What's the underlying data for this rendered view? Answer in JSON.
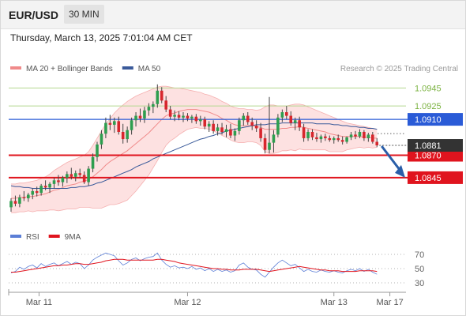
{
  "header": {
    "symbol": "EUR/USD",
    "timeframe": "30 MIN",
    "datetime": "Thursday, March 13, 2025 7:01:04 AM CET"
  },
  "legend": {
    "items": [
      {
        "label": "MA 20 + Bollinger Bands",
        "color": "#f08a8a"
      },
      {
        "label": "MA 50",
        "color": "#3a5a9a"
      }
    ],
    "credit": "Research © 2025 Trading Central"
  },
  "chart_data": [
    {
      "type": "candlestick",
      "title": "",
      "x_tick_labels": [
        "Mar 11",
        "Mar 12",
        "Mar 13",
        "Mar 17"
      ],
      "ylim": [
        1.08,
        1.0955
      ],
      "current_price": "1.0881",
      "levels": [
        {
          "label": "1.0945",
          "value": 1.0945,
          "kind": "target",
          "color": "#7cb342"
        },
        {
          "label": "1.0925",
          "value": 1.0925,
          "kind": "target",
          "color": "#7cb342"
        },
        {
          "label": "1.0910",
          "value": 1.091,
          "kind": "pivot",
          "color": "#2a5bd7"
        },
        {
          "label": "1.0870",
          "value": 1.087,
          "kind": "support",
          "color": "#e0141e"
        },
        {
          "label": "1.0845",
          "value": 1.0845,
          "kind": "support",
          "color": "#e0141e"
        }
      ],
      "candles": [
        [
          1.0812,
          1.0822,
          1.0807,
          1.0819
        ],
        [
          1.0819,
          1.0825,
          1.0813,
          1.0816
        ],
        [
          1.0816,
          1.0826,
          1.0812,
          1.0823
        ],
        [
          1.0823,
          1.083,
          1.0819,
          1.0822
        ],
        [
          1.0822,
          1.0828,
          1.0818,
          1.0826
        ],
        [
          1.0826,
          1.0833,
          1.0821,
          1.083
        ],
        [
          1.083,
          1.0835,
          1.0824,
          1.0828
        ],
        [
          1.0828,
          1.0838,
          1.0825,
          1.0836
        ],
        [
          1.0836,
          1.0842,
          1.0831,
          1.0834
        ],
        [
          1.0834,
          1.084,
          1.0828,
          1.0838
        ],
        [
          1.0838,
          1.0845,
          1.0833,
          1.0842
        ],
        [
          1.0842,
          1.0848,
          1.0836,
          1.084
        ],
        [
          1.084,
          1.0847,
          1.0835,
          1.0845
        ],
        [
          1.0845,
          1.0852,
          1.0839,
          1.0849
        ],
        [
          1.0849,
          1.0856,
          1.0843,
          1.0846
        ],
        [
          1.0846,
          1.0853,
          1.0841,
          1.085
        ],
        [
          1.085,
          1.0855,
          1.0845,
          1.0848
        ],
        [
          1.0848,
          1.0852,
          1.0838,
          1.084
        ],
        [
          1.084,
          1.0858,
          1.0836,
          1.0855
        ],
        [
          1.0855,
          1.0872,
          1.0851,
          1.0868
        ],
        [
          1.0868,
          1.0885,
          1.0863,
          1.0882
        ],
        [
          1.0882,
          1.0898,
          1.0877,
          1.0894
        ],
        [
          1.0894,
          1.0912,
          1.0889,
          1.0906
        ],
        [
          1.0906,
          1.0915,
          1.0898,
          1.0904
        ],
        [
          1.0904,
          1.0912,
          1.0895,
          1.0908
        ],
        [
          1.0908,
          1.0913,
          1.0893,
          1.0896
        ],
        [
          1.0896,
          1.0905,
          1.0883,
          1.0888
        ],
        [
          1.0888,
          1.0902,
          1.0884,
          1.0898
        ],
        [
          1.0898,
          1.0912,
          1.0893,
          1.0909
        ],
        [
          1.0909,
          1.0918,
          1.0902,
          1.0914
        ],
        [
          1.0914,
          1.0922,
          1.0907,
          1.0911
        ],
        [
          1.0911,
          1.0924,
          1.0906,
          1.092
        ],
        [
          1.092,
          1.0928,
          1.0914,
          1.0924
        ],
        [
          1.0924,
          1.093,
          1.0917,
          1.0927
        ],
        [
          1.0927,
          1.0949,
          1.0923,
          1.0942
        ],
        [
          1.0942,
          1.0946,
          1.0928,
          1.0931
        ],
        [
          1.0931,
          1.0936,
          1.0918,
          1.0921
        ],
        [
          1.0921,
          1.0925,
          1.091,
          1.0913
        ],
        [
          1.0913,
          1.092,
          1.0908,
          1.0915
        ],
        [
          1.0915,
          1.0919,
          1.0909,
          1.0912
        ],
        [
          1.0912,
          1.0918,
          1.0907,
          1.0914
        ],
        [
          1.0914,
          1.0917,
          1.0908,
          1.0911
        ],
        [
          1.0911,
          1.0915,
          1.0906,
          1.0913
        ],
        [
          1.0913,
          1.0916,
          1.0905,
          1.0908
        ],
        [
          1.0908,
          1.0914,
          1.0903,
          1.091
        ],
        [
          1.091,
          1.0913,
          1.0899,
          1.0902
        ],
        [
          1.0902,
          1.0908,
          1.0896,
          1.0905
        ],
        [
          1.0905,
          1.0909,
          1.0894,
          1.0897
        ],
        [
          1.0897,
          1.0905,
          1.0892,
          1.0901
        ],
        [
          1.0901,
          1.0906,
          1.0893,
          1.0896
        ],
        [
          1.0896,
          1.0904,
          1.089,
          1.0899
        ],
        [
          1.0899,
          1.0905,
          1.0889,
          1.0892
        ],
        [
          1.0892,
          1.09,
          1.0886,
          1.0897
        ],
        [
          1.0897,
          1.0912,
          1.0893,
          1.0909
        ],
        [
          1.0909,
          1.0917,
          1.0903,
          1.0914
        ],
        [
          1.0914,
          1.0918,
          1.0904,
          1.0907
        ],
        [
          1.0907,
          1.0912,
          1.0898,
          1.0903
        ],
        [
          1.0903,
          1.0909,
          1.0896,
          1.09
        ],
        [
          1.09,
          1.0906,
          1.0885,
          1.0889
        ],
        [
          1.0889,
          1.0894,
          1.0872,
          1.0876
        ],
        [
          1.0876,
          1.0935,
          1.0872,
          1.0884
        ],
        [
          1.0884,
          1.0898,
          1.0873,
          1.0893
        ],
        [
          1.0893,
          1.0916,
          1.089,
          1.0912
        ],
        [
          1.0912,
          1.0921,
          1.0907,
          1.0918
        ],
        [
          1.0918,
          1.0925,
          1.091,
          1.0914
        ],
        [
          1.0914,
          1.0919,
          1.0903,
          1.0906
        ],
        [
          1.0906,
          1.0912,
          1.0898,
          1.0909
        ],
        [
          1.0909,
          1.0913,
          1.0897,
          1.0901
        ],
        [
          1.0901,
          1.0905,
          1.0885,
          1.0889
        ],
        [
          1.0889,
          1.0899,
          1.0886,
          1.0896
        ],
        [
          1.0896,
          1.0899,
          1.0887,
          1.089
        ],
        [
          1.089,
          1.0895,
          1.0885,
          1.0888
        ],
        [
          1.0888,
          1.0893,
          1.0884,
          1.0891
        ],
        [
          1.0891,
          1.0894,
          1.0886,
          1.0889
        ],
        [
          1.0889,
          1.0892,
          1.0885,
          1.0887
        ],
        [
          1.0887,
          1.0891,
          1.0883,
          1.0889
        ],
        [
          1.0889,
          1.0893,
          1.0885,
          1.0887
        ],
        [
          1.0887,
          1.0891,
          1.0882,
          1.0885
        ],
        [
          1.0885,
          1.0891,
          1.0883,
          1.089
        ],
        [
          1.089,
          1.0896,
          1.0887,
          1.0893
        ],
        [
          1.0893,
          1.0897,
          1.0888,
          1.0891
        ],
        [
          1.0891,
          1.0899,
          1.0889,
          1.0896
        ],
        [
          1.0896,
          1.0898,
          1.0886,
          1.0889
        ],
        [
          1.0889,
          1.0895,
          1.0885,
          1.0893
        ],
        [
          1.0893,
          1.0896,
          1.0883,
          1.0885
        ],
        [
          1.0885,
          1.0889,
          1.0879,
          1.0881
        ]
      ],
      "ma20": [
        1.0822,
        1.0822,
        1.0823,
        1.0823,
        1.0824,
        1.0824,
        1.0825,
        1.0826,
        1.0827,
        1.0829,
        1.0831,
        1.0832,
        1.0834,
        1.0836,
        1.0837,
        1.0838,
        1.084,
        1.0841,
        1.0843,
        1.0846,
        1.085,
        1.0854,
        1.0859,
        1.0863,
        1.0866,
        1.0869,
        1.0872,
        1.0875,
        1.0879,
        1.0883,
        1.0887,
        1.0891,
        1.0895,
        1.09,
        1.0905,
        1.091,
        1.0914,
        1.0916,
        1.0917,
        1.0919,
        1.092,
        1.0921,
        1.0921,
        1.0921,
        1.092,
        1.0919,
        1.0918,
        1.0916,
        1.0914,
        1.0911,
        1.0909,
        1.0906,
        1.0904,
        1.0903,
        1.0903,
        1.0903,
        1.0903,
        1.0902,
        1.0901,
        1.0899,
        1.0899,
        1.0899,
        1.0899,
        1.09,
        1.09,
        1.0901,
        1.0901,
        1.0902,
        1.0901,
        1.09,
        1.0899,
        1.0898,
        1.0897,
        1.0896,
        1.0894,
        1.0893,
        1.0892,
        1.0891,
        1.0891,
        1.0891,
        1.0891,
        1.0891,
        1.089,
        1.089,
        1.0889,
        1.0889
      ],
      "bb_upper": [
        1.0838,
        1.0838,
        1.0839,
        1.0839,
        1.084,
        1.0841,
        1.0842,
        1.0844,
        1.0846,
        1.0849,
        1.0853,
        1.0856,
        1.0859,
        1.0862,
        1.0864,
        1.0866,
        1.0868,
        1.087,
        1.0874,
        1.0881,
        1.0889,
        1.0897,
        1.0905,
        1.0911,
        1.0917,
        1.0922,
        1.0926,
        1.093,
        1.0933,
        1.0936,
        1.0938,
        1.094,
        1.0942,
        1.0944,
        1.0946,
        1.0947,
        1.0947,
        1.0946,
        1.0945,
        1.0945,
        1.0944,
        1.0943,
        1.0942,
        1.0941,
        1.094,
        1.0938,
        1.0937,
        1.0935,
        1.0933,
        1.093,
        1.0928,
        1.0925,
        1.0923,
        1.0922,
        1.0922,
        1.0921,
        1.0921,
        1.092,
        1.0921,
        1.0924,
        1.0926,
        1.0926,
        1.0925,
        1.0925,
        1.0925,
        1.0926,
        1.0927,
        1.0927,
        1.0926,
        1.0924,
        1.0922,
        1.092,
        1.0918,
        1.0916,
        1.0914,
        1.0912,
        1.091,
        1.0908,
        1.0906,
        1.0905,
        1.0904,
        1.0903,
        1.0902,
        1.0901,
        1.09,
        1.0899
      ],
      "bb_lower": [
        1.0806,
        1.0806,
        1.0807,
        1.0807,
        1.0808,
        1.0807,
        1.0808,
        1.0808,
        1.0808,
        1.0809,
        1.0809,
        1.0808,
        1.0809,
        1.081,
        1.081,
        1.081,
        1.0812,
        1.0812,
        1.0812,
        1.0811,
        1.0811,
        1.0811,
        1.0813,
        1.0815,
        1.0815,
        1.0816,
        1.0818,
        1.082,
        1.0825,
        1.083,
        1.0836,
        1.0842,
        1.0848,
        1.0856,
        1.0864,
        1.0873,
        1.0881,
        1.0886,
        1.0889,
        1.0893,
        1.0896,
        1.0899,
        1.09,
        1.0901,
        1.09,
        1.09,
        1.0899,
        1.0897,
        1.0895,
        1.0892,
        1.089,
        1.0887,
        1.0885,
        1.0884,
        1.0884,
        1.0885,
        1.0885,
        1.0884,
        1.0881,
        1.0874,
        1.0872,
        1.0872,
        1.0873,
        1.0875,
        1.0875,
        1.0876,
        1.0875,
        1.0877,
        1.0876,
        1.0876,
        1.0876,
        1.0876,
        1.0876,
        1.0876,
        1.0874,
        1.0874,
        1.0874,
        1.0874,
        1.0876,
        1.0877,
        1.0878,
        1.0879,
        1.0878,
        1.0879,
        1.0878,
        1.0879
      ],
      "ma50": [
        1.0836,
        1.0835,
        1.0835,
        1.0834,
        1.0834,
        1.0833,
        1.0833,
        1.0833,
        1.0833,
        1.0833,
        1.0833,
        1.0833,
        1.0833,
        1.0833,
        1.0834,
        1.0834,
        1.0835,
        1.0835,
        1.0836,
        1.0837,
        1.0839,
        1.084,
        1.0842,
        1.0844,
        1.0846,
        1.0848,
        1.085,
        1.0852,
        1.0854,
        1.0857,
        1.0859,
        1.0861,
        1.0863,
        1.0866,
        1.0868,
        1.087,
        1.0872,
        1.0874,
        1.0876,
        1.0878,
        1.088,
        1.0882,
        1.0884,
        1.0886,
        1.0888,
        1.0889,
        1.0891,
        1.0892,
        1.0894,
        1.0895,
        1.0897,
        1.0898,
        1.0899,
        1.09,
        1.0901,
        1.0902,
        1.0903,
        1.0904,
        1.0904,
        1.0904,
        1.0905,
        1.0905,
        1.0905,
        1.0906,
        1.0906,
        1.0906,
        1.0906,
        1.0906,
        1.0906,
        1.0906,
        1.0906,
        1.0905,
        1.0905,
        1.0905,
        1.0905,
        1.0904,
        1.0904,
        1.0903,
        1.0903,
        1.0902,
        1.0902,
        1.0901,
        1.0901,
        1.09,
        1.09,
        1.0899
      ]
    },
    {
      "type": "line",
      "title": "",
      "legend": [
        {
          "label": "RSI",
          "color": "#5b7ed6"
        },
        {
          "label": "9MA",
          "color": "#e0141e"
        }
      ],
      "y_tick_labels": [
        "70",
        "50",
        "30"
      ],
      "y_ticks": [
        70,
        50,
        30
      ],
      "ylim": [
        20,
        80
      ],
      "series": [
        {
          "name": "RSI",
          "values": [
            44,
            46,
            52,
            49,
            53,
            55,
            51,
            57,
            53,
            56,
            58,
            54,
            57,
            60,
            56,
            59,
            57,
            50,
            55,
            62,
            66,
            69,
            72,
            70,
            68,
            61,
            55,
            58,
            63,
            65,
            61,
            64,
            66,
            67,
            72,
            62,
            56,
            52,
            54,
            51,
            52,
            50,
            53,
            49,
            51,
            47,
            50,
            46,
            49,
            46,
            48,
            45,
            47,
            55,
            58,
            52,
            49,
            48,
            42,
            38,
            45,
            52,
            58,
            62,
            58,
            54,
            56,
            51,
            46,
            49,
            46,
            45,
            48,
            46,
            45,
            47,
            45,
            44,
            47,
            49,
            47,
            50,
            46,
            49,
            45,
            42
          ]
        },
        {
          "name": "9MA",
          "values": [
            45,
            45,
            46,
            47,
            48,
            49,
            50,
            51,
            52,
            53,
            54,
            54,
            55,
            55,
            56,
            57,
            57,
            56,
            56,
            57,
            58,
            59,
            61,
            62,
            63,
            63,
            63,
            62,
            62,
            62,
            62,
            62,
            62,
            62,
            63,
            63,
            62,
            61,
            60,
            58,
            57,
            56,
            55,
            54,
            53,
            52,
            51,
            50,
            50,
            49,
            49,
            48,
            48,
            48,
            49,
            49,
            49,
            49,
            48,
            47,
            46,
            47,
            48,
            49,
            50,
            51,
            52,
            53,
            52,
            51,
            50,
            49,
            48,
            48,
            47,
            47,
            47,
            46,
            46,
            46,
            46,
            47,
            47,
            47,
            47,
            46
          ]
        }
      ]
    }
  ]
}
